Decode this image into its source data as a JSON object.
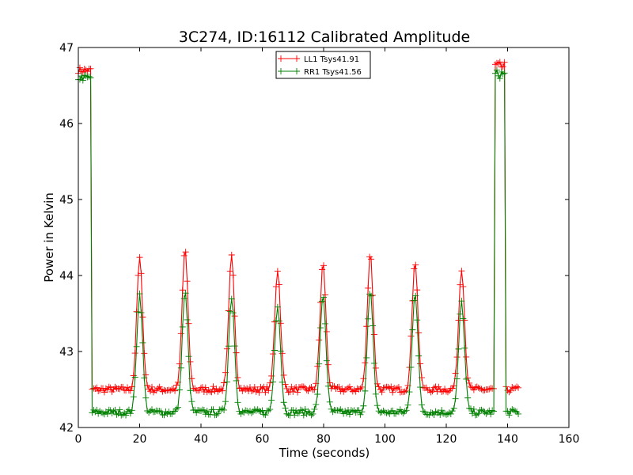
{
  "chart_data": {
    "type": "line",
    "title": "3C274, ID:16112 Calibrated Amplitude",
    "xlabel": "Time (seconds)",
    "ylabel": "Power in Kelvin",
    "xlim": [
      0,
      160
    ],
    "ylim": [
      42,
      47
    ],
    "xticks": [
      "0",
      "20",
      "40",
      "60",
      "80",
      "100",
      "120",
      "140",
      "160"
    ],
    "yticks": [
      "42",
      "43",
      "44",
      "45",
      "46",
      "47"
    ],
    "grid": false,
    "legend_position": "top-center",
    "marker": "+",
    "series": [
      {
        "name": "LL1 Tsys41.91",
        "color": "#ff0000",
        "baseline": 42.5,
        "onsource": 46.7,
        "peaks": [
          {
            "t": 20.0,
            "y": 44.22
          },
          {
            "t": 34.8,
            "y": 44.35
          },
          {
            "t": 50.0,
            "y": 44.25
          },
          {
            "t": 65.0,
            "y": 44.08
          },
          {
            "t": 79.8,
            "y": 44.15
          },
          {
            "t": 95.2,
            "y": 44.3
          },
          {
            "t": 109.8,
            "y": 44.2
          },
          {
            "t": 125.0,
            "y": 44.1
          }
        ]
      },
      {
        "name": "RR1 Tsys41.56",
        "color": "#008000",
        "baseline": 42.2,
        "onsource": 46.6,
        "peaks": [
          {
            "t": 20.0,
            "y": 43.75
          },
          {
            "t": 34.8,
            "y": 43.78
          },
          {
            "t": 50.0,
            "y": 43.72
          },
          {
            "t": 65.0,
            "y": 43.62
          },
          {
            "t": 79.8,
            "y": 43.75
          },
          {
            "t": 95.2,
            "y": 43.78
          },
          {
            "t": 109.8,
            "y": 43.78
          },
          {
            "t": 125.0,
            "y": 43.65
          }
        ]
      }
    ],
    "segments": {
      "start_high": [
        0,
        4.2
      ],
      "drop_time": 4.3,
      "end_high_start": 135.6,
      "end_high_stop": 139.3,
      "tail_end": 143.5,
      "sample_step": 0.5
    }
  }
}
